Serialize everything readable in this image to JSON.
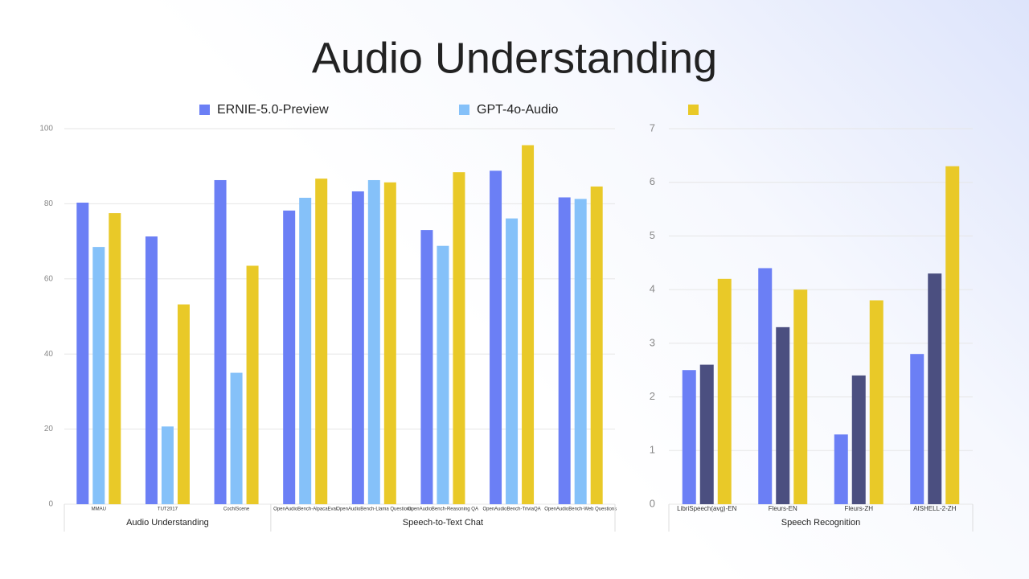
{
  "title": "Audio Understanding",
  "chart_data": [
    {
      "type": "bar",
      "categories": [
        "MMAU",
        "TUT2017",
        "CochlScene",
        "OpenAudioBench-AlpacaEval",
        "OpenAudioBench-Llama Questions",
        "OpenAudioBench-Reasoning QA",
        "OpenAudioBench-TriviaQA",
        "OpenAudioBench-Web Questions"
      ],
      "category_groups": [
        {
          "label": "Audio Understanding",
          "size": 3
        },
        {
          "label": "Speech-to-Text Chat",
          "size": 5
        }
      ],
      "series": [
        {
          "name": "ERNIE-5.0-Preview",
          "color": "#6b7ff5",
          "values": [
            80.3,
            71.3,
            86.3,
            78.2,
            83.3,
            73.0,
            88.8,
            81.7
          ]
        },
        {
          "name": "GPT-4o-Audio",
          "color": "#85c1f9",
          "values": [
            68.5,
            20.7,
            35.0,
            81.6,
            86.3,
            68.8,
            76.1,
            81.3
          ]
        },
        {
          "color": "#e9c928",
          "values": [
            77.5,
            53.2,
            63.5,
            86.7,
            85.7,
            88.4,
            95.6,
            84.6
          ]
        }
      ],
      "ylim": [
        0,
        100
      ],
      "yticks": [
        0,
        20,
        40,
        60,
        80,
        100
      ],
      "grid": true
    },
    {
      "type": "bar",
      "categories": [
        "LibriSpeech(avg)-EN",
        "Fleurs-EN",
        "Fleurs-ZH",
        "AISHELL-2-ZH"
      ],
      "category_groups": [
        {
          "label": "Speech Recognition",
          "size": 4
        }
      ],
      "series": [
        {
          "color": "#6b7ff5",
          "values": [
            2.5,
            4.4,
            1.3,
            2.8
          ]
        },
        {
          "color": "#4b4f80",
          "values": [
            2.6,
            3.3,
            2.4,
            4.3
          ]
        },
        {
          "color": "#e9c928",
          "values": [
            4.2,
            4.0,
            3.8,
            6.3
          ]
        }
      ],
      "ylim": [
        0,
        7
      ],
      "yticks": [
        0,
        1,
        2,
        3,
        4,
        5,
        6,
        7
      ],
      "grid": true
    }
  ]
}
